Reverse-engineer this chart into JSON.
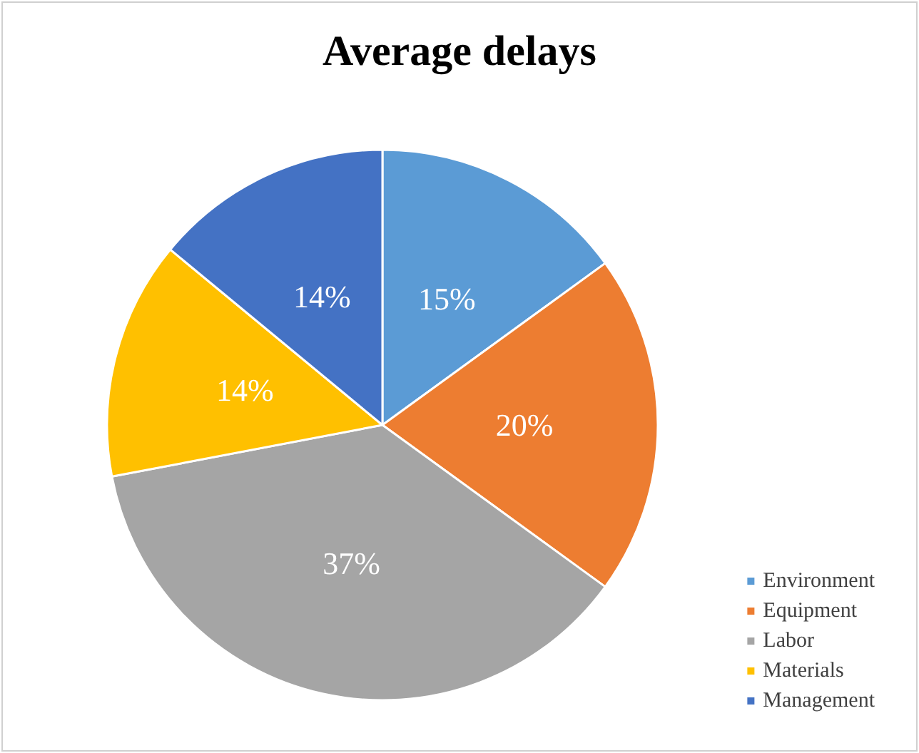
{
  "chart_data": {
    "type": "pie",
    "title": "Average delays",
    "categories": [
      "Environment",
      "Equipment",
      "Labor",
      "Materials",
      "Management"
    ],
    "values": [
      15,
      20,
      37,
      14,
      14
    ],
    "colors": [
      "#5b9bd5",
      "#ed7d31",
      "#a5a5a5",
      "#ffc000",
      "#4472c4"
    ],
    "value_labels": [
      "15%",
      "20%",
      "37%",
      "14%",
      "14%"
    ],
    "legend": "bottom right"
  }
}
